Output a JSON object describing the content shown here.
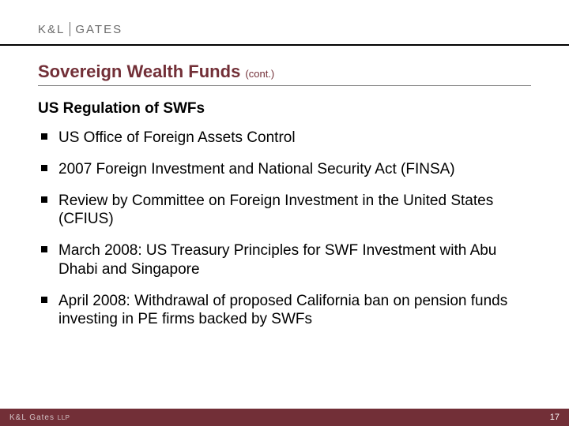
{
  "logo": {
    "left": "K&L",
    "right": "GATES"
  },
  "title": {
    "main": "Sovereign Wealth Funds ",
    "cont": "(cont.)"
  },
  "subheading": "US Regulation of SWFs",
  "bullets": [
    "US Office of Foreign Assets Control",
    "2007 Foreign Investment and National Security Act (FINSA)",
    "Review by Committee on Foreign Investment in the United States (CFIUS)",
    "March 2008: US Treasury Principles for SWF Investment with Abu Dhabi and Singapore",
    "April 2008: Withdrawal of proposed California ban on pension funds investing in PE firms backed by SWFs"
  ],
  "footer": {
    "logo_left": "K&L Gates",
    "logo_llp": "LLP",
    "page_number": "17"
  },
  "colors": {
    "brand_maroon": "#722f37",
    "logo_gray": "#6b6b6b",
    "divider_gray": "#888888",
    "footer_text": "#d4c5c8"
  }
}
